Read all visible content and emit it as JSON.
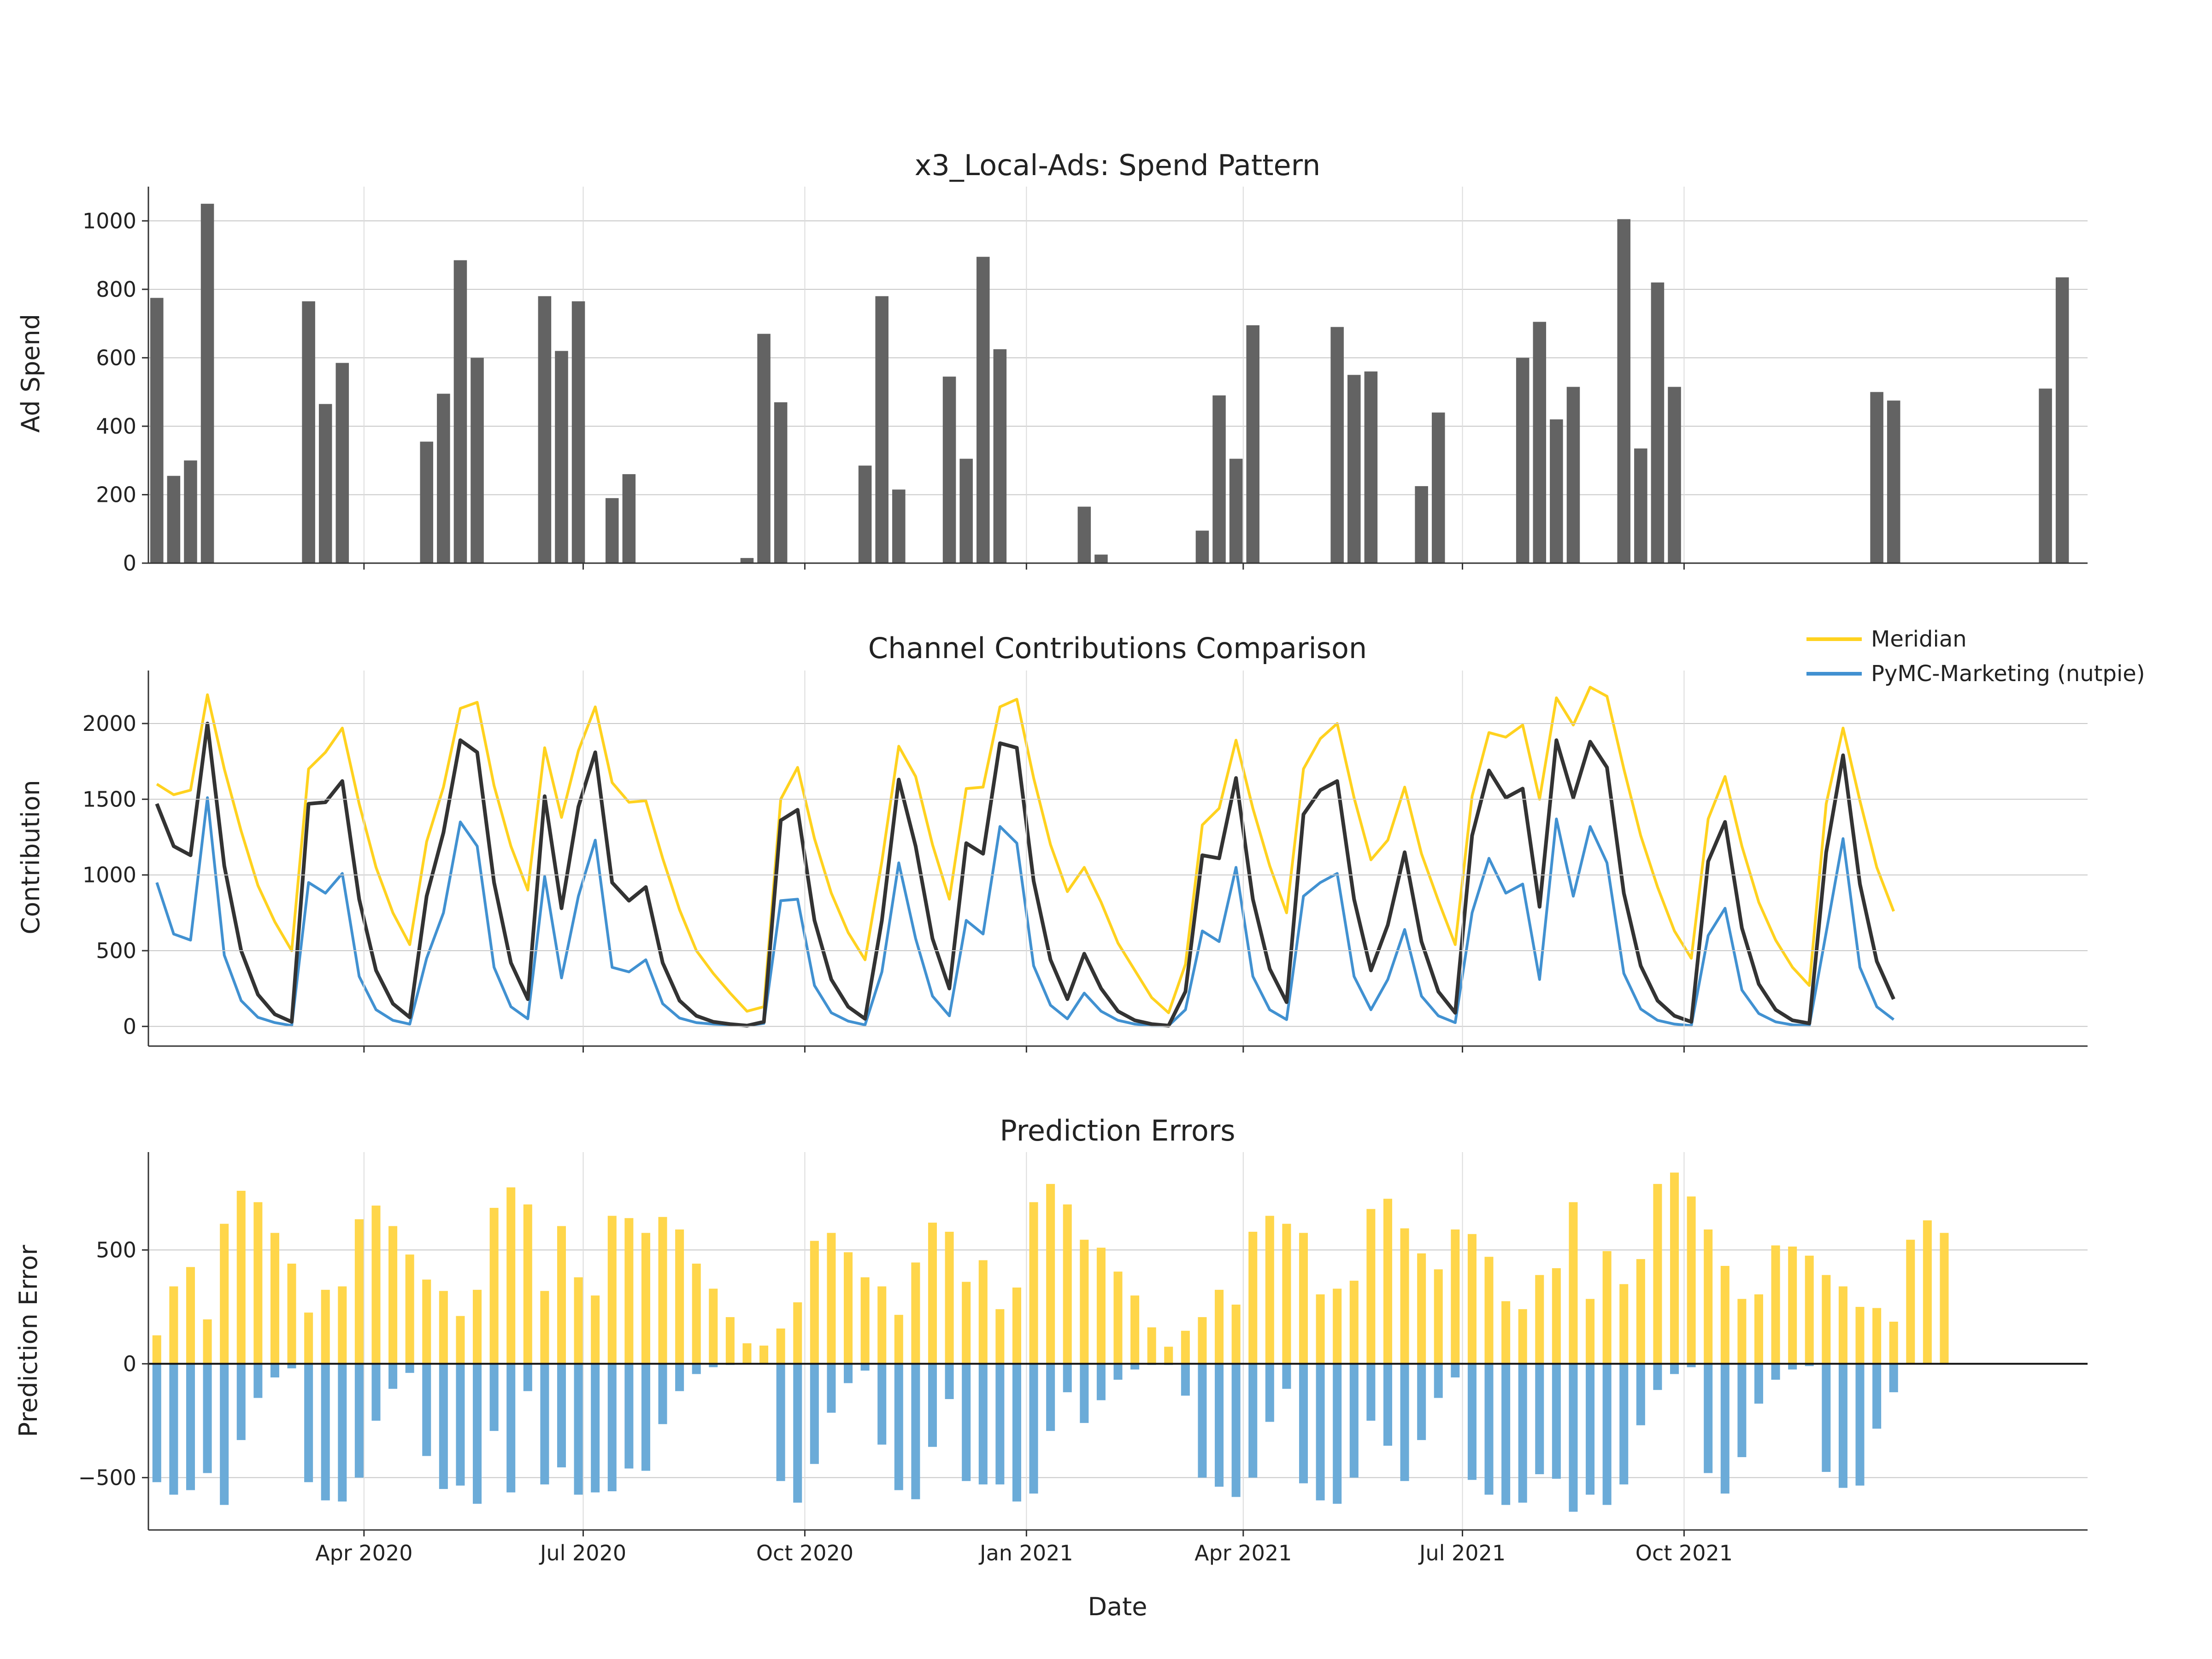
{
  "chart_data": [
    {
      "id": "spend",
      "type": "bar",
      "title": "x3_Local-Ads: Spend Pattern",
      "ylabel": "Ad Spend",
      "ylim": [
        0,
        1100
      ],
      "yticks": [
        0,
        200,
        400,
        600,
        800,
        1000
      ],
      "grid": true,
      "x_start": "2020-01-06",
      "x_step_days": 7,
      "color": "#636363",
      "values": [
        775,
        255,
        300,
        1050,
        0,
        0,
        0,
        0,
        0,
        765,
        465,
        585,
        0,
        0,
        0,
        0,
        355,
        495,
        885,
        600,
        0,
        0,
        0,
        780,
        620,
        765,
        0,
        190,
        260,
        0,
        0,
        0,
        0,
        0,
        0,
        15,
        670,
        470,
        0,
        0,
        0,
        0,
        285,
        780,
        215,
        0,
        0,
        545,
        305,
        895,
        625,
        0,
        0,
        0,
        0,
        165,
        25,
        0,
        0,
        0,
        0,
        0,
        95,
        490,
        305,
        695,
        0,
        0,
        0,
        0,
        690,
        550,
        560,
        0,
        0,
        225,
        440,
        0,
        0,
        0,
        0,
        600,
        705,
        420,
        515,
        0,
        0,
        1005,
        335,
        820,
        515,
        0,
        0,
        0,
        0,
        0,
        0,
        0,
        0,
        0,
        0,
        0,
        500,
        475,
        0,
        0,
        0,
        0,
        0,
        0,
        0,
        0,
        510,
        835,
        0
      ]
    },
    {
      "id": "contrib",
      "type": "line",
      "title": "Channel Contributions Comparison",
      "ylabel": "Contribution",
      "ylim": [
        -130,
        2350
      ],
      "yticks": [
        0,
        500,
        1000,
        1500,
        2000
      ],
      "grid": true,
      "legend_position": "top-right",
      "x_start": "2020-01-06",
      "x_step_days": 7,
      "series": [
        {
          "name": "Meridian",
          "color": "#FFD21F",
          "values": [
            1600,
            1530,
            1560,
            2190,
            1700,
            1290,
            930,
            690,
            500,
            1700,
            1810,
            1970,
            1470,
            1050,
            750,
            540,
            1220,
            1580,
            2100,
            2140,
            1590,
            1190,
            900,
            1840,
            1380,
            1820,
            2110,
            1610,
            1480,
            1490,
            1110,
            770,
            500,
            350,
            220,
            100,
            130,
            1500,
            1710,
            1240,
            880,
            620,
            440,
            1090,
            1850,
            1650,
            1200,
            840,
            1570,
            1580,
            2110,
            2160,
            1640,
            1200,
            890,
            1050,
            820,
            550,
            370,
            190,
            90,
            410,
            1330,
            1440,
            1890,
            1440,
            1060,
            750,
            1700,
            1900,
            2000,
            1510,
            1100,
            1230,
            1580,
            1140,
            830,
            540,
            1520,
            1940,
            1910,
            1990,
            1500,
            2170,
            1990,
            2240,
            2180,
            1700,
            1260,
            920,
            630,
            450,
            1370,
            1650,
            1190,
            820,
            570,
            390,
            270,
            1470,
            1970,
            1490,
            1050,
            760
          ]
        },
        {
          "name": "PyMC-Marketing (nutpie)",
          "color": "#4191D1",
          "values": [
            950,
            610,
            570,
            1510,
            470,
            170,
            60,
            25,
            5,
            950,
            880,
            1010,
            330,
            110,
            40,
            15,
            450,
            750,
            1350,
            1190,
            390,
            130,
            50,
            990,
            320,
            860,
            1230,
            390,
            360,
            440,
            150,
            55,
            25,
            15,
            10,
            5,
            20,
            830,
            840,
            270,
            90,
            35,
            10,
            360,
            1080,
            580,
            200,
            70,
            700,
            610,
            1320,
            1210,
            400,
            140,
            50,
            220,
            100,
            40,
            15,
            5,
            5,
            110,
            630,
            560,
            1050,
            330,
            110,
            45,
            860,
            950,
            1010,
            330,
            110,
            310,
            640,
            200,
            70,
            25,
            750,
            1110,
            880,
            940,
            310,
            1370,
            860,
            1320,
            1080,
            350,
            115,
            40,
            15,
            5,
            600,
            780,
            240,
            85,
            30,
            10,
            5,
            620,
            1240,
            390,
            130,
            45
          ]
        },
        {
          "name": "",
          "color": "#333333",
          "values": [
            1470,
            1190,
            1130,
            2000,
            1060,
            500,
            210,
            80,
            30,
            1470,
            1480,
            1620,
            840,
            370,
            150,
            60,
            860,
            1280,
            1890,
            1810,
            950,
            420,
            180,
            1520,
            780,
            1450,
            1810,
            950,
            830,
            920,
            420,
            170,
            70,
            30,
            15,
            5,
            30,
            1360,
            1430,
            700,
            310,
            130,
            50,
            700,
            1630,
            1190,
            580,
            250,
            1210,
            1140,
            1870,
            1840,
            960,
            440,
            180,
            480,
            250,
            100,
            40,
            15,
            5,
            230,
            1130,
            1110,
            1640,
            840,
            380,
            160,
            1400,
            1560,
            1620,
            840,
            370,
            670,
            1150,
            560,
            230,
            90,
            1260,
            1690,
            1510,
            1570,
            790,
            1890,
            1510,
            1880,
            1710,
            880,
            400,
            170,
            70,
            30,
            1090,
            1350,
            650,
            280,
            110,
            40,
            20,
            1150,
            1790,
            940,
            430,
            180
          ]
        }
      ]
    },
    {
      "id": "errors",
      "type": "bar",
      "title": "Prediction Errors",
      "xlabel": "Date",
      "ylabel": "Prediction Error",
      "ylim": [
        -730,
        930
      ],
      "yticks": [
        -500,
        0,
        500
      ],
      "grid": true,
      "x_start": "2020-01-06",
      "x_step_days": 7,
      "xticks": [
        {
          "date": "2020-04-01",
          "label": "Apr 2020"
        },
        {
          "date": "2020-07-01",
          "label": "Jul 2020"
        },
        {
          "date": "2020-10-01",
          "label": "Oct 2020"
        },
        {
          "date": "2021-01-01",
          "label": "Jan 2021"
        },
        {
          "date": "2021-04-01",
          "label": "Apr 2021"
        },
        {
          "date": "2021-07-01",
          "label": "Jul 2021"
        },
        {
          "date": "2021-10-01",
          "label": "Oct 2021"
        }
      ],
      "series": [
        {
          "name": "Meridian",
          "color": "#FFD64A",
          "values": [
            125,
            340,
            425,
            195,
            615,
            760,
            710,
            575,
            440,
            225,
            325,
            340,
            635,
            695,
            605,
            480,
            370,
            320,
            210,
            325,
            685,
            775,
            700,
            320,
            605,
            380,
            300,
            650,
            640,
            575,
            645,
            590,
            440,
            330,
            205,
            90,
            80,
            155,
            270,
            540,
            575,
            490,
            380,
            340,
            215,
            445,
            620,
            580,
            360,
            455,
            240,
            335,
            710,
            790,
            700,
            545,
            510,
            405,
            300,
            160,
            75,
            145,
            205,
            325,
            260,
            580,
            650,
            615,
            575,
            305,
            330,
            365,
            680,
            725,
            595,
            485,
            415,
            590,
            570,
            470,
            275,
            240,
            390,
            420,
            710,
            285,
            495,
            350,
            460,
            790,
            840,
            735,
            590,
            430,
            285,
            305,
            520,
            515,
            475,
            390,
            340,
            250,
            245,
            185,
            545,
            630,
            575
          ]
        },
        {
          "name": "PyMC-Marketing (nutpie)",
          "color": "#6BABD8",
          "values": [
            -520,
            -575,
            -555,
            -480,
            -620,
            -335,
            -150,
            -60,
            -20,
            -520,
            -600,
            -605,
            -500,
            -250,
            -110,
            -40,
            -405,
            -550,
            -535,
            -615,
            -295,
            -565,
            -120,
            -530,
            -455,
            -575,
            -565,
            -560,
            -460,
            -470,
            -265,
            -120,
            -45,
            -15,
            -5,
            0,
            0,
            -515,
            -610,
            -440,
            -215,
            -85,
            -30,
            -355,
            -555,
            -595,
            -365,
            -155,
            -515,
            -530,
            -530,
            -605,
            -570,
            -295,
            -125,
            -260,
            -160,
            -70,
            -25,
            -5,
            -5,
            -140,
            -500,
            -540,
            -585,
            -500,
            -255,
            -110,
            -525,
            -600,
            -615,
            -500,
            -250,
            -360,
            -515,
            -335,
            -150,
            -60,
            -510,
            -575,
            -620,
            -610,
            -485,
            -505,
            -650,
            -575,
            -620,
            -530,
            -270,
            -115,
            -45,
            -15,
            -480,
            -570,
            -410,
            -175,
            -70,
            -25,
            -10,
            -475,
            -545,
            -535,
            -285,
            -125
          ]
        }
      ]
    }
  ],
  "legend": {
    "items": [
      {
        "label": "Meridian",
        "color": "#FFD21F"
      },
      {
        "label": "PyMC-Marketing (nutpie)",
        "color": "#4191D1"
      }
    ]
  }
}
